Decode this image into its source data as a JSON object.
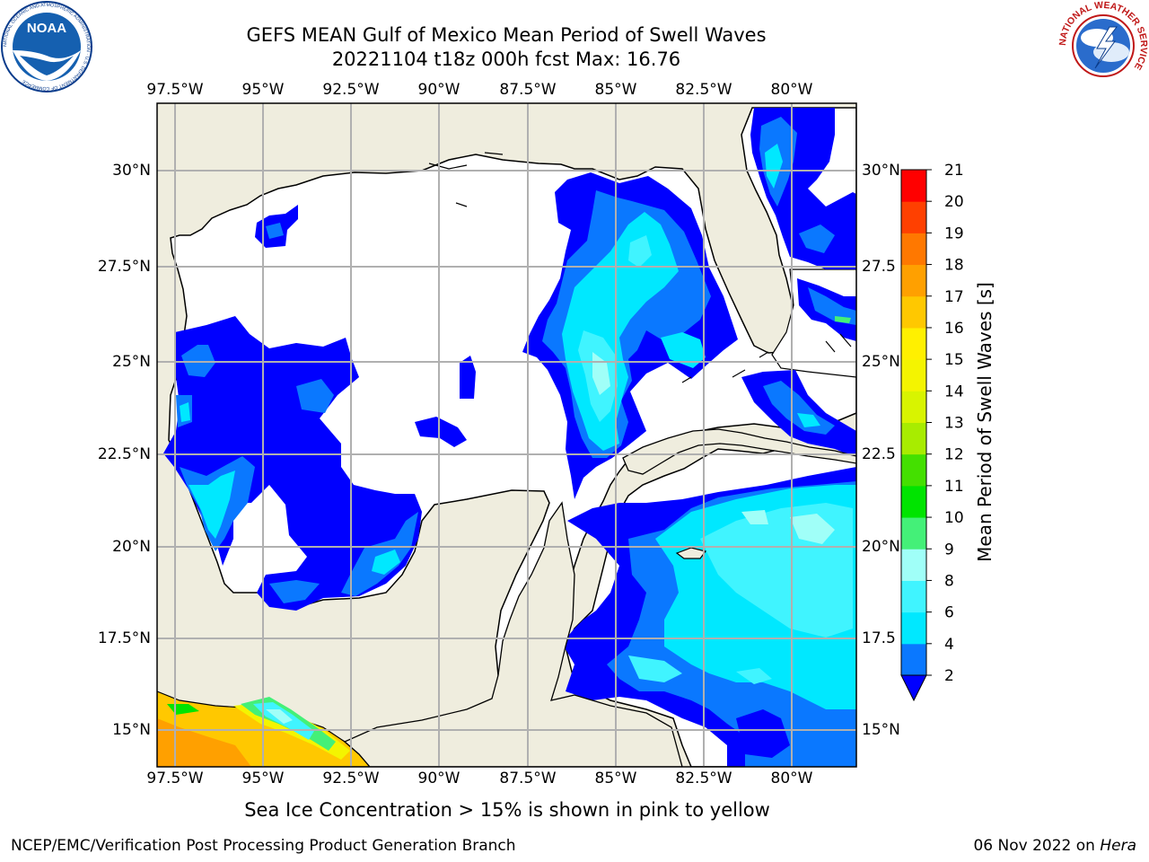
{
  "title": {
    "line1": "GEFS MEAN Gulf of Mexico Mean Period of Swell Waves",
    "line2": "20221104 t18z 000h fcst   Max: 16.76"
  },
  "map": {
    "lon_ticks": [
      "97.5°W",
      "95°W",
      "92.5°W",
      "90°W",
      "87.5°W",
      "85°W",
      "82.5°W",
      "80°W"
    ],
    "lat_ticks_left": [
      "30°N",
      "27.5°N",
      "25°N",
      "22.5°N",
      "20°N",
      "17.5°N",
      "15°N"
    ],
    "lat_ticks_right": [
      "30°N",
      "27.5",
      "25°N",
      "22.5",
      "20°N",
      "17.5",
      "15°N"
    ],
    "colors": {
      "land": "#efedde",
      "grid": "#b0b0b0",
      "coast": "#000000"
    }
  },
  "colorbar": {
    "label": "Mean Period of Swell Waves [s]",
    "ticks": [
      "2",
      "4",
      "6",
      "8",
      "9",
      "10",
      "11",
      "12",
      "13",
      "14",
      "15",
      "16",
      "17",
      "18",
      "19",
      "20",
      "21"
    ],
    "colors": [
      "#0000ff",
      "#0a78ff",
      "#00e8ff",
      "#40f4ff",
      "#a0fff8",
      "#44f078",
      "#00e400",
      "#44e000",
      "#a8ec00",
      "#d8f400",
      "#f4f400",
      "#fff000",
      "#ffc800",
      "#ffa000",
      "#ff7800",
      "#ff4000",
      "#ff0000"
    ]
  },
  "note": "Sea Ice Concentration > 15% is shown in pink to yellow",
  "footer": {
    "left": "NCEP/EMC/Verification Post Processing Product Generation Branch",
    "right_date": "06 Nov 2022 on ",
    "right_host": "Hera"
  },
  "logos": {
    "noaa": {
      "text": "NOAA",
      "ring_text": "NATIONAL OCEANIC AND ATMOSPHERIC ADMINISTRATION · U.S. DEPARTMENT OF COMMERCE"
    },
    "nws": {
      "ring_text": "NATIONAL WEATHER SERVICE"
    }
  }
}
